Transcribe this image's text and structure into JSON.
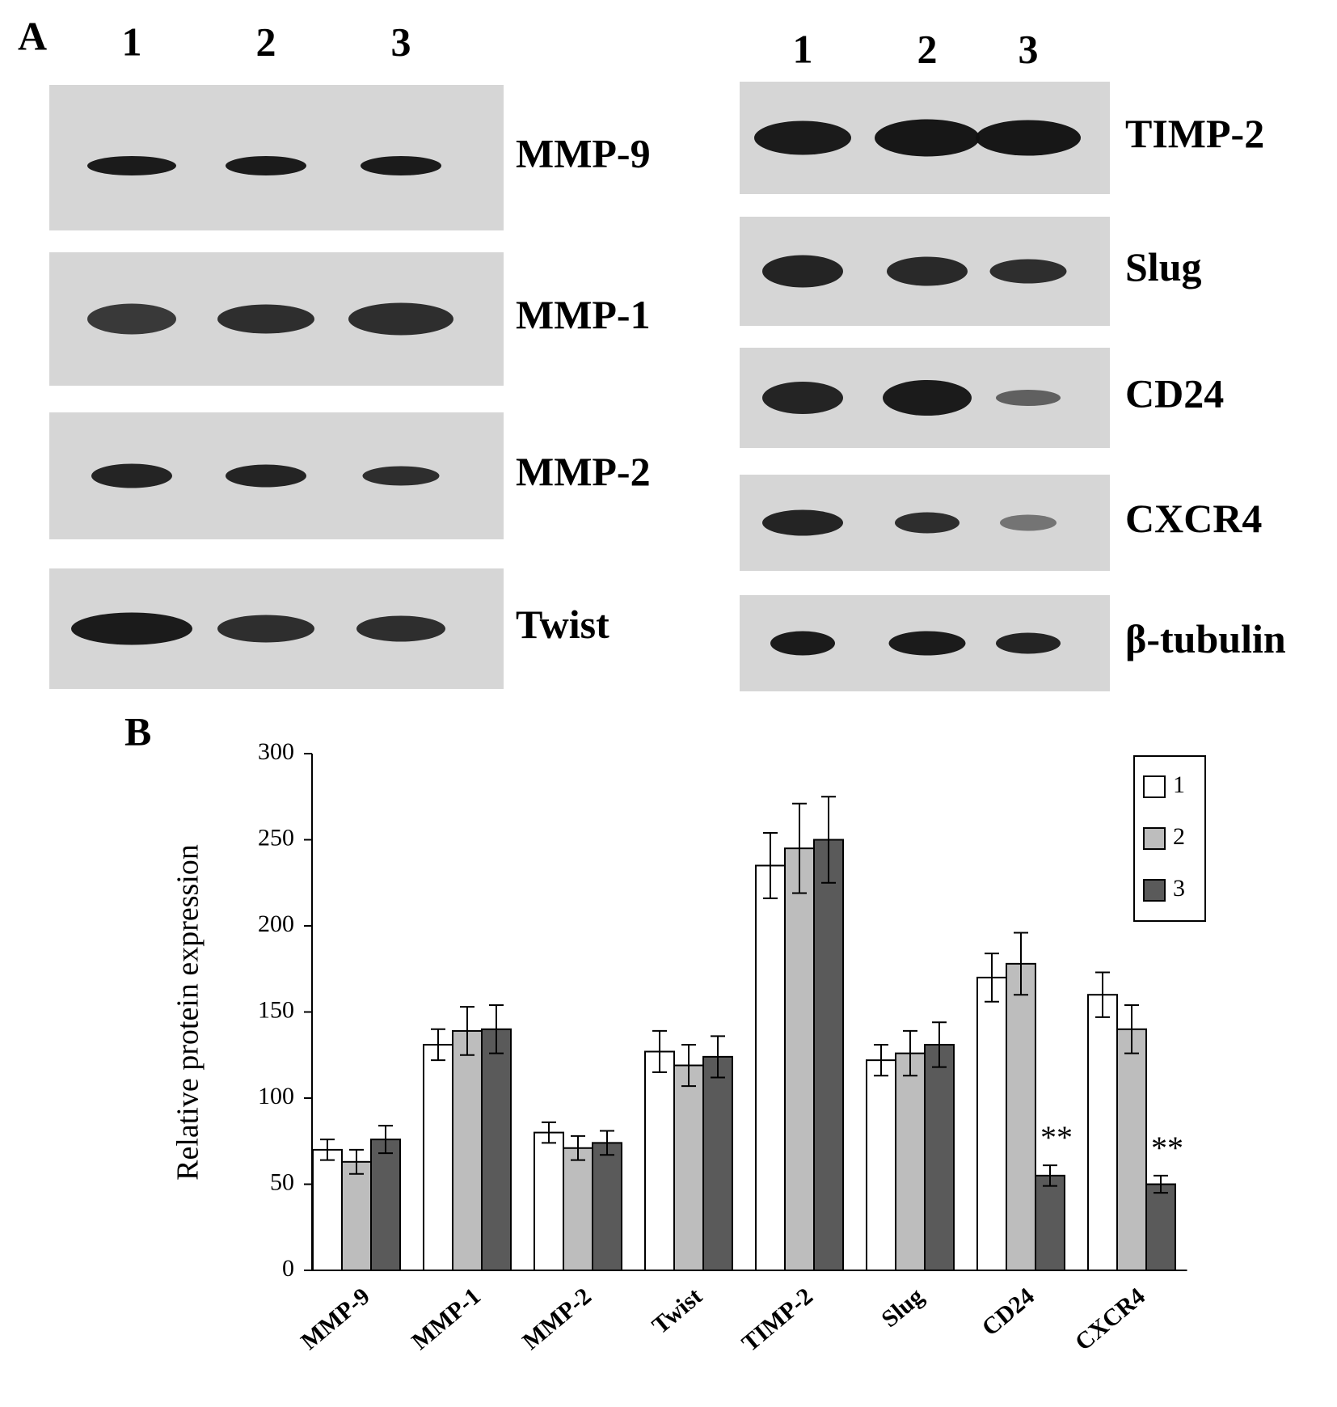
{
  "panel_a": {
    "label": "A",
    "blots": [
      {
        "lanes": [
          "1",
          "2",
          "3"
        ],
        "proteins": [
          "MMP-9",
          "MMP-1",
          "MMP-2",
          "Twist"
        ]
      },
      {
        "lanes": [
          "1",
          "2",
          "3"
        ],
        "proteins": [
          "TIMP-2",
          "Slug",
          "CD24",
          "CXCR4",
          "β-tubulin"
        ]
      }
    ]
  },
  "chart_data": {
    "type": "bar",
    "panel_label": "B",
    "y_label": "Relative protein expression",
    "categories": [
      "MMP-9",
      "MMP-1",
      "MMP-2",
      "Twist",
      "TIMP-2",
      "Slug",
      "CD24",
      "CXCR4"
    ],
    "series": [
      {
        "name": "1",
        "color": "#ffffff",
        "values": [
          70,
          131,
          80,
          127,
          235,
          122,
          170,
          160
        ],
        "errors": [
          6,
          9,
          6,
          12,
          19,
          9,
          14,
          13
        ]
      },
      {
        "name": "2",
        "color": "#bdbdbd",
        "values": [
          63,
          139,
          71,
          119,
          245,
          126,
          178,
          140
        ],
        "errors": [
          7,
          14,
          7,
          12,
          26,
          13,
          18,
          14
        ]
      },
      {
        "name": "3",
        "color": "#5a5a5a",
        "values": [
          76,
          140,
          74,
          124,
          250,
          131,
          55,
          50
        ],
        "errors": [
          8,
          14,
          7,
          12,
          25,
          13,
          6,
          5
        ],
        "significance": [
          null,
          null,
          null,
          null,
          null,
          null,
          "**",
          "**"
        ]
      }
    ],
    "ylim": [
      0,
      300
    ],
    "yticks": [
      0,
      50,
      100,
      150,
      200,
      250,
      300
    ],
    "legend": "upper right"
  }
}
